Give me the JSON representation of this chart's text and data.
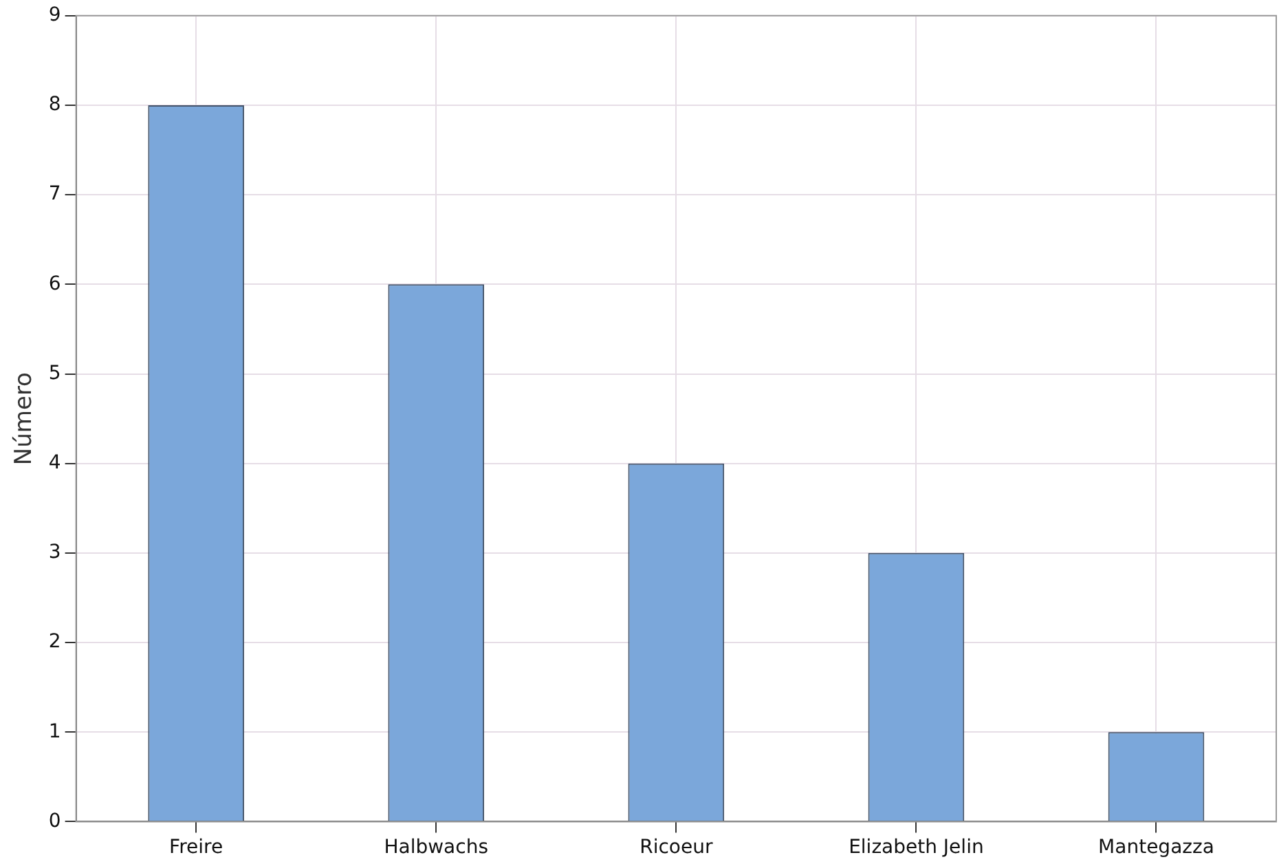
{
  "chart_data": {
    "type": "bar",
    "ylabel": "Número",
    "categories": [
      "Freire",
      "Halbwachs",
      "Ricoeur",
      "Elizabeth Jelin",
      "Mantegazza"
    ],
    "values": [
      8,
      6,
      4,
      3,
      1
    ],
    "color": "#7ba7da",
    "ylim": [
      0,
      9
    ],
    "yticks": [
      0,
      1,
      2,
      3,
      4,
      5,
      6,
      7,
      8,
      9
    ],
    "grid": true
  }
}
